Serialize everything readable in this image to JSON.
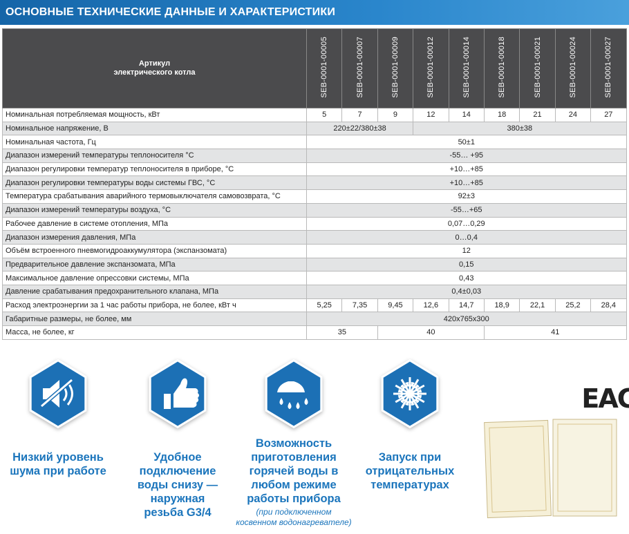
{
  "header": {
    "title": "ОСНОВНЫЕ ТЕХНИЧЕСКИЕ ДАННЫЕ И ХАРАКТЕРИСТИКИ"
  },
  "table": {
    "corner": "Артикул электрического котла",
    "articles": [
      "SEB-0001-00005",
      "SEB-0001-00007",
      "SEB-0001-00009",
      "SEB-0001-00012",
      "SEB-0001-00014",
      "SEB-0001-00018",
      "SEB-0001-00021",
      "SEB-0001-00024",
      "SEB-0001-00027"
    ],
    "rows": [
      {
        "label": "Номинальная потребляемая мощность, кВт",
        "cells": [
          "5",
          "7",
          "9",
          "12",
          "14",
          "18",
          "21",
          "24",
          "27"
        ]
      },
      {
        "label": "Номинальное напряжение, В",
        "cells": [
          "220±22/380±38",
          "380±38"
        ]
      },
      {
        "label": "Номинальная частота, Гц",
        "cells": [
          "50±1"
        ]
      },
      {
        "label": "Диапазон измерений температуры теплоносителя °С",
        "cells": [
          "-55… +95"
        ]
      },
      {
        "label": "Диапазон регулировки температур теплоносителя в приборе, °С",
        "cells": [
          "+10…+85"
        ]
      },
      {
        "label": "Диапазон регулировки температуры воды системы ГВС, °С",
        "cells": [
          "+10…+85"
        ]
      },
      {
        "label": "Температура срабатывания аварийного термовыключателя самовозврата, °С",
        "cells": [
          "92±3"
        ]
      },
      {
        "label": "Диапазон измерений температуры воздуха, °С",
        "cells": [
          "-55…+65"
        ]
      },
      {
        "label": "Рабочее давление в системе отопления, МПа",
        "cells": [
          "0,07…0,29"
        ]
      },
      {
        "label": "Диапазон измерения давления, МПа",
        "cells": [
          "0…0,4"
        ]
      },
      {
        "label": "Объём встроенного пневмогидроаккумулятора (экспанзомата)",
        "cells": [
          "12"
        ]
      },
      {
        "label": "Предварительное давление экспанзомата, МПа",
        "cells": [
          "0,15"
        ]
      },
      {
        "label": "Максимальное давление опрессовки системы, МПа",
        "cells": [
          "0,43"
        ]
      },
      {
        "label": "Давление срабатывания предохранительного клапана, МПа",
        "cells": [
          "0,4±0,03"
        ]
      },
      {
        "label": "Расход электроэнергии за 1 час работы прибора, не более, кВт ч",
        "cells": [
          "5,25",
          "7,35",
          "9,45",
          "12,6",
          "14,7",
          "18,9",
          "22,1",
          "25,2",
          "28,4"
        ]
      },
      {
        "label": "Габаритные размеры, не более, мм",
        "cells": [
          "420x765x300"
        ]
      },
      {
        "label": "Масса, не более, кг",
        "cells": [
          "35",
          "40",
          "41"
        ]
      }
    ]
  },
  "features": [
    {
      "text": "Низкий уровень шума при работе"
    },
    {
      "text": "Удобное подключение воды снизу — наружная резьба G3/4"
    },
    {
      "text": "Возможность приготовления горячей воды в любом режиме работы прибора",
      "note": "(при подключенном косвенном водонагревателе)"
    },
    {
      "text": "Запуск при отрицательных температурах"
    }
  ],
  "mark": "EAC"
}
